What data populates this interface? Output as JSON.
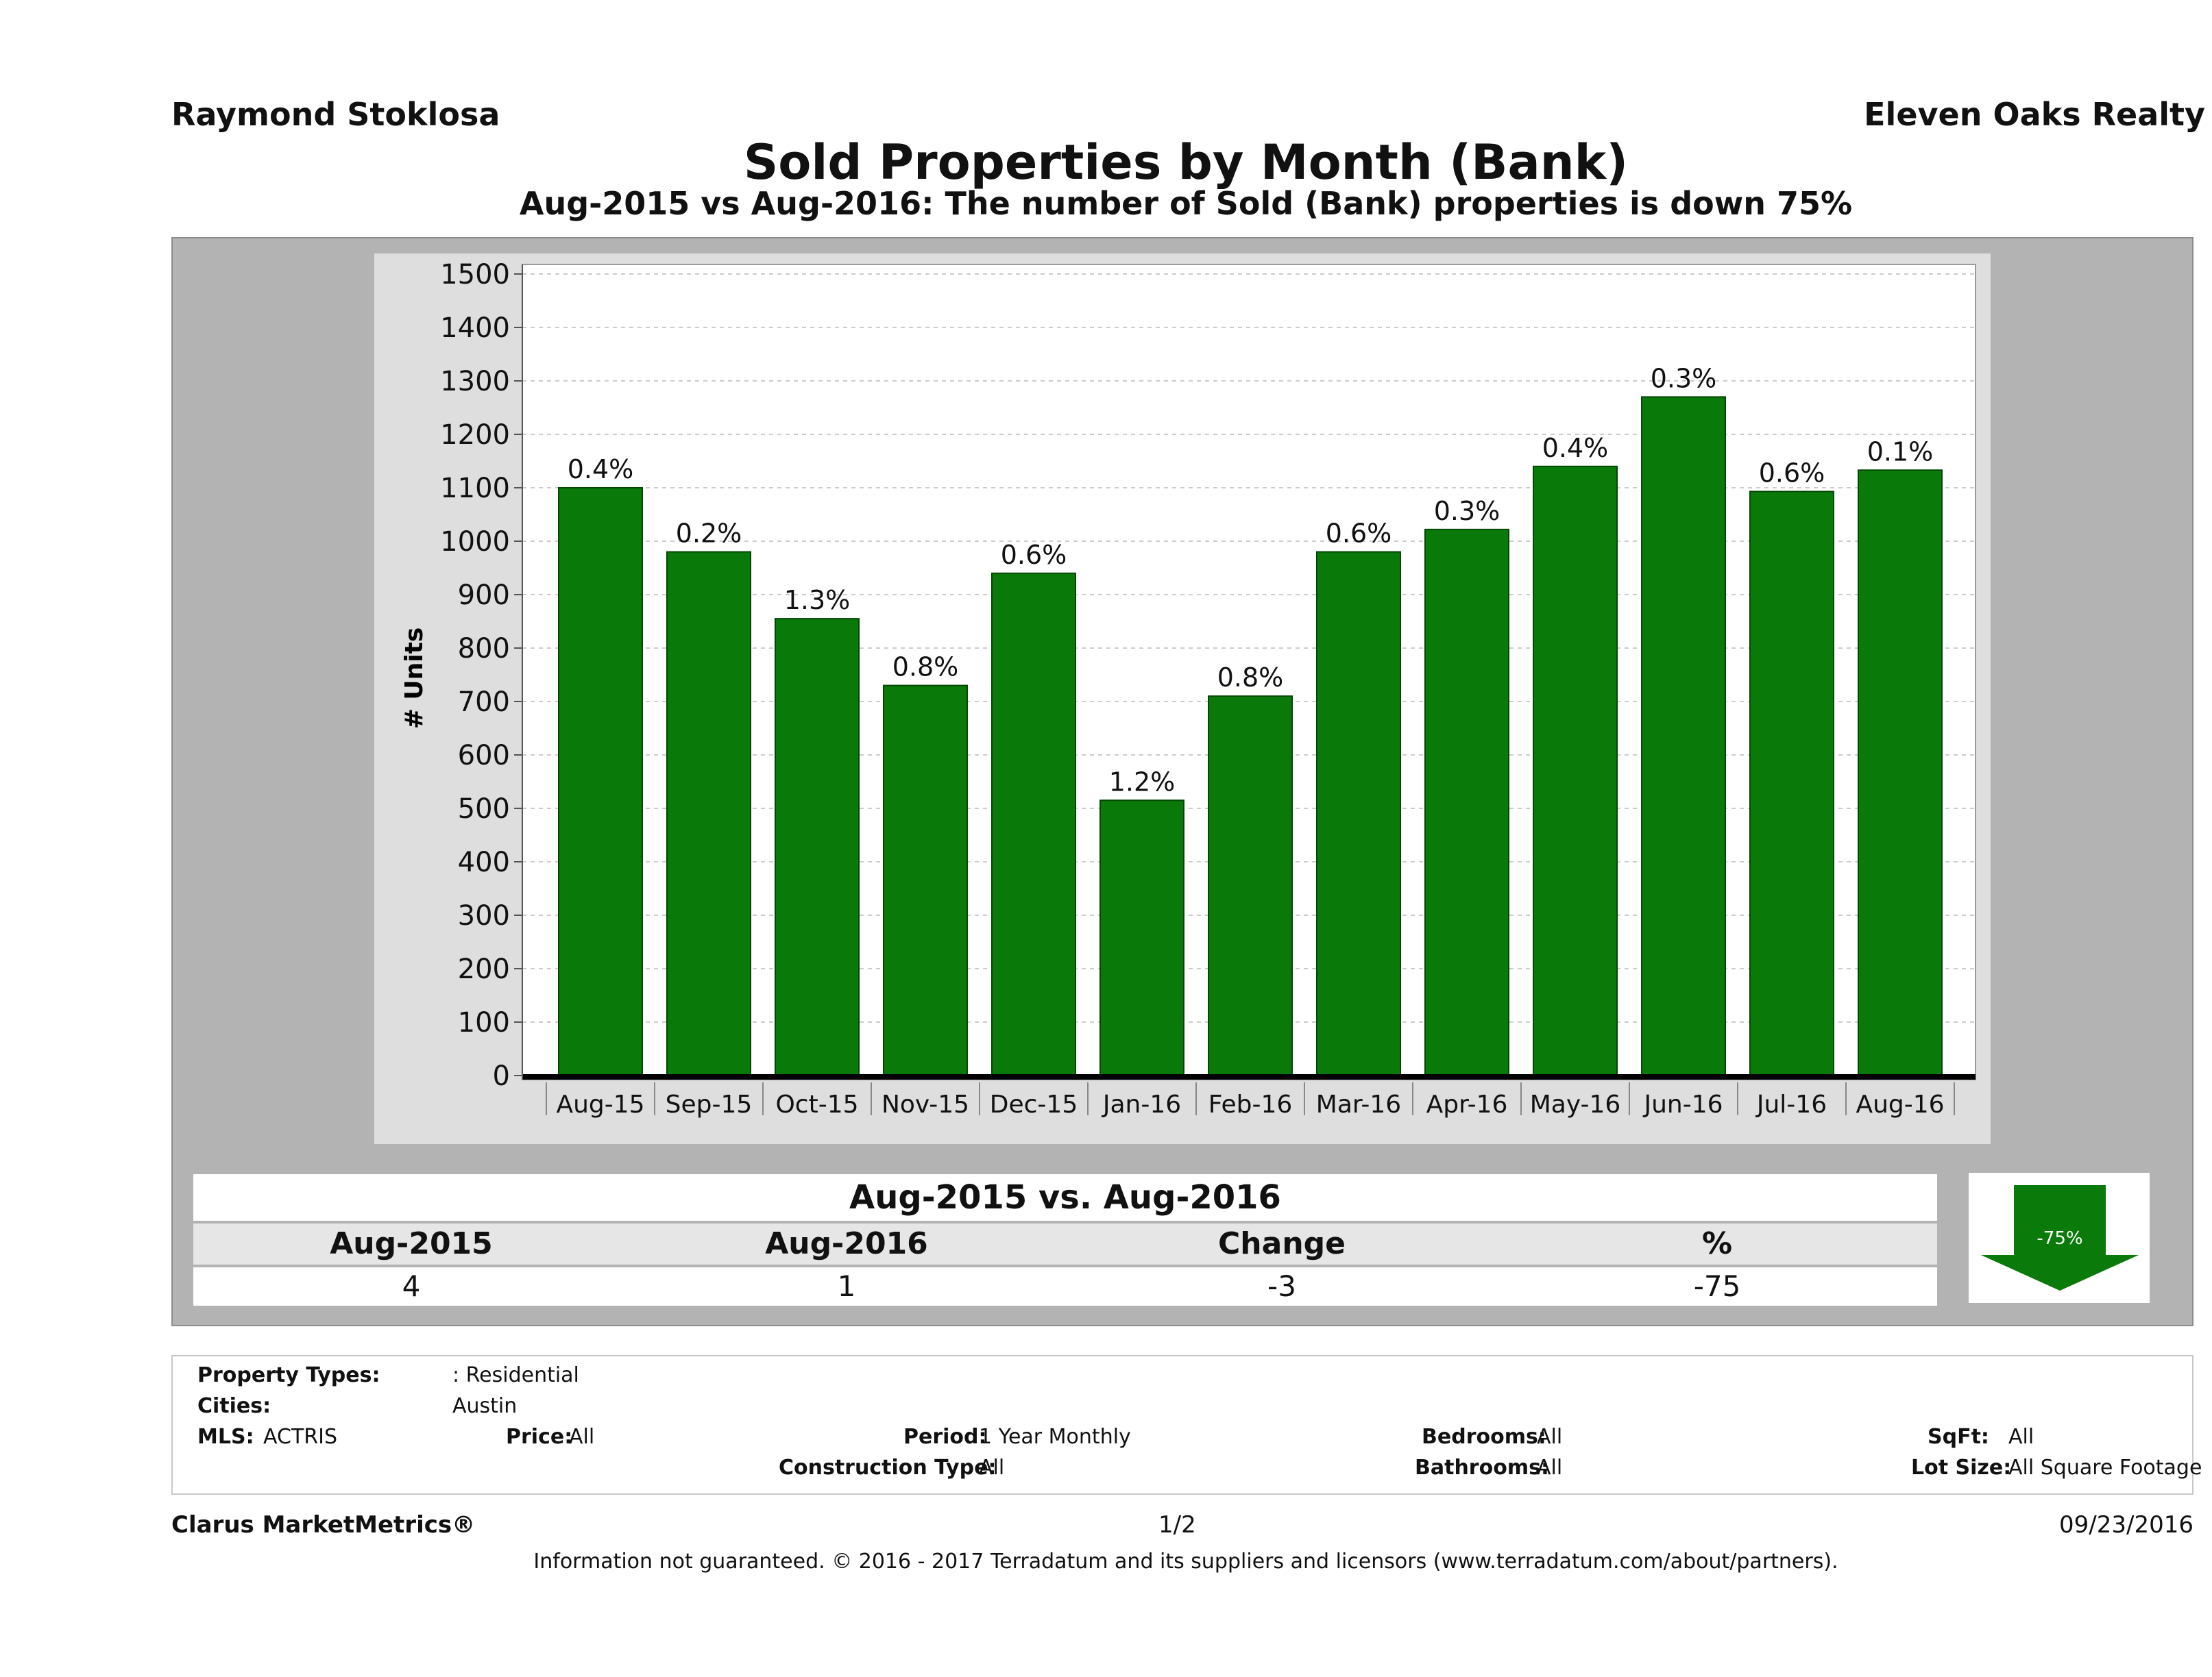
{
  "header": {
    "agent": "Raymond Stoklosa",
    "office": "Eleven Oaks Realty",
    "title": "Sold Properties by Month (Bank)",
    "subtitle": "Aug-2015 vs Aug-2016: The number of Sold (Bank)  properties is down 75%"
  },
  "chart_data": {
    "type": "bar",
    "title": "",
    "xlabel": "",
    "ylabel": "# Units",
    "ylim": [
      0,
      1500
    ],
    "yticks": [
      0,
      100,
      200,
      300,
      400,
      500,
      600,
      700,
      800,
      900,
      1000,
      1100,
      1200,
      1300,
      1400,
      1500
    ],
    "categories": [
      "Aug-15",
      "Sep-15",
      "Oct-15",
      "Nov-15",
      "Dec-15",
      "Jan-16",
      "Feb-16",
      "Mar-16",
      "Apr-16",
      "May-16",
      "Jun-16",
      "Jul-16",
      "Aug-16"
    ],
    "values": [
      1100,
      980,
      855,
      730,
      940,
      515,
      710,
      980,
      1022,
      1140,
      1270,
      1093,
      1133
    ],
    "bar_labels": [
      "0.4%",
      "0.2%",
      "1.3%",
      "0.8%",
      "0.6%",
      "1.2%",
      "0.8%",
      "0.6%",
      "0.3%",
      "0.4%",
      "0.3%",
      "0.6%",
      "0.1%"
    ],
    "grid": true,
    "bar_color": "#097a09"
  },
  "comparison": {
    "title": "Aug-2015 vs. Aug-2016",
    "headers": [
      "Aug-2015",
      "Aug-2016",
      "Change",
      "%"
    ],
    "values": [
      "4",
      "1",
      "-3",
      "-75"
    ],
    "arrow_label": "-75%",
    "arrow_color": "#0a7a0a"
  },
  "details": {
    "property_types_label": "Property Types:",
    "property_types_value": ": Residential",
    "cities_label": "Cities:",
    "cities_value": "Austin",
    "mls_label": "MLS:",
    "mls_value": "ACTRIS",
    "price_label": "Price:",
    "price_value": "All",
    "period_label": "Period:",
    "period_value": "1 Year Monthly",
    "construction_label": "Construction Type:",
    "construction_value": "All",
    "bedrooms_label": "Bedrooms:",
    "bedrooms_value": "All",
    "bathrooms_label": "Bathrooms:",
    "bathrooms_value": "All",
    "sqft_label": "SqFt:",
    "sqft_value": "All",
    "lotsize_label": "Lot Size:",
    "lotsize_value": "All Square Footage"
  },
  "footer": {
    "brand": "Clarus MarketMetrics®",
    "page": "1/2",
    "date": "09/23/2016",
    "disclaimer": "Information not guaranteed. © 2016 - 2017 Terradatum and its suppliers and licensors (www.terradatum.com/about/partners)."
  }
}
